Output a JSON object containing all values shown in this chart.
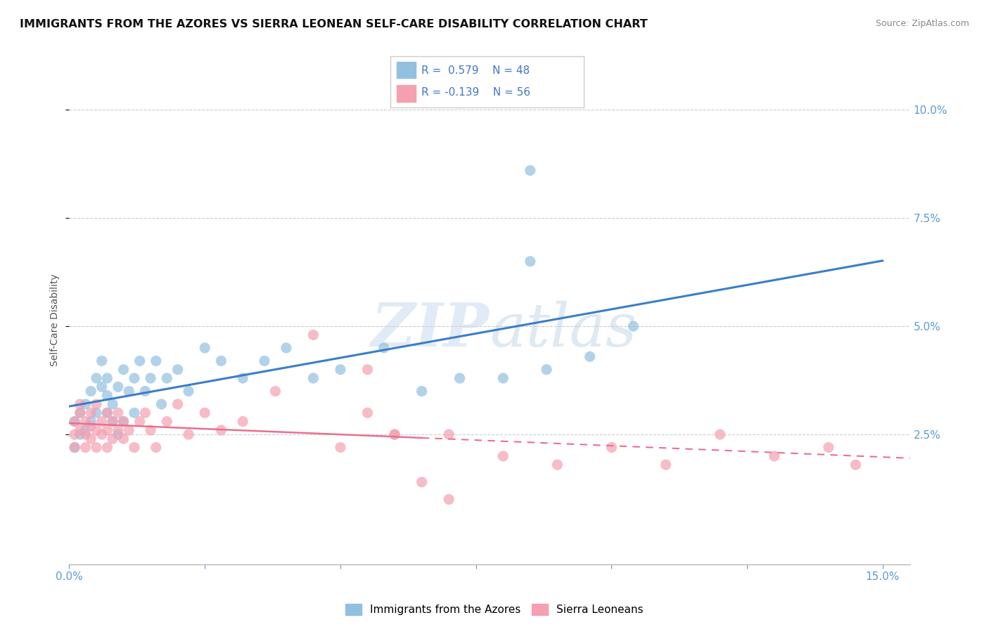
{
  "title": "IMMIGRANTS FROM THE AZORES VS SIERRA LEONEAN SELF-CARE DISABILITY CORRELATION CHART",
  "source": "Source: ZipAtlas.com",
  "xlim": [
    0.0,
    0.155
  ],
  "ylim": [
    -0.005,
    0.108
  ],
  "yticks": [
    0.025,
    0.05,
    0.075,
    0.1
  ],
  "xticks": [
    0.0,
    0.025,
    0.05,
    0.075,
    0.1,
    0.125,
    0.15
  ],
  "legend1_r": "0.579",
  "legend1_n": "48",
  "legend2_r": "-0.139",
  "legend2_n": "56",
  "blue_color": "#92c0e0",
  "pink_color": "#f4a0b0",
  "blue_line_color": "#3a7ec8",
  "pink_line_color": "#e87090",
  "ylabel": "Self-Care Disability",
  "azores_x": [
    0.001,
    0.001,
    0.002,
    0.002,
    0.003,
    0.003,
    0.004,
    0.004,
    0.005,
    0.005,
    0.006,
    0.006,
    0.007,
    0.007,
    0.007,
    0.008,
    0.008,
    0.009,
    0.009,
    0.01,
    0.01,
    0.011,
    0.012,
    0.012,
    0.013,
    0.014,
    0.015,
    0.016,
    0.017,
    0.018,
    0.02,
    0.022,
    0.025,
    0.028,
    0.032,
    0.036,
    0.04,
    0.045,
    0.05,
    0.058,
    0.065,
    0.072,
    0.08,
    0.088,
    0.096,
    0.104,
    0.085,
    0.085
  ],
  "azores_y": [
    0.028,
    0.022,
    0.03,
    0.025,
    0.032,
    0.026,
    0.035,
    0.028,
    0.038,
    0.03,
    0.036,
    0.042,
    0.03,
    0.034,
    0.038,
    0.032,
    0.028,
    0.036,
    0.025,
    0.04,
    0.028,
    0.035,
    0.038,
    0.03,
    0.042,
    0.035,
    0.038,
    0.042,
    0.032,
    0.038,
    0.04,
    0.035,
    0.045,
    0.042,
    0.038,
    0.042,
    0.045,
    0.038,
    0.04,
    0.045,
    0.035,
    0.038,
    0.038,
    0.04,
    0.043,
    0.05,
    0.086,
    0.065
  ],
  "sierra_x": [
    0.001,
    0.001,
    0.001,
    0.002,
    0.002,
    0.002,
    0.003,
    0.003,
    0.003,
    0.004,
    0.004,
    0.004,
    0.005,
    0.005,
    0.005,
    0.006,
    0.006,
    0.007,
    0.007,
    0.007,
    0.008,
    0.008,
    0.009,
    0.009,
    0.01,
    0.01,
    0.011,
    0.012,
    0.013,
    0.014,
    0.015,
    0.016,
    0.018,
    0.02,
    0.022,
    0.025,
    0.028,
    0.032,
    0.038,
    0.045,
    0.055,
    0.06,
    0.055,
    0.07,
    0.08,
    0.09,
    0.1,
    0.11,
    0.12,
    0.13,
    0.14,
    0.145,
    0.05,
    0.06,
    0.065,
    0.07
  ],
  "sierra_y": [
    0.025,
    0.028,
    0.022,
    0.03,
    0.026,
    0.032,
    0.025,
    0.028,
    0.022,
    0.03,
    0.027,
    0.024,
    0.032,
    0.026,
    0.022,
    0.028,
    0.025,
    0.03,
    0.026,
    0.022,
    0.028,
    0.024,
    0.03,
    0.026,
    0.028,
    0.024,
    0.026,
    0.022,
    0.028,
    0.03,
    0.026,
    0.022,
    0.028,
    0.032,
    0.025,
    0.03,
    0.026,
    0.028,
    0.035,
    0.048,
    0.03,
    0.025,
    0.04,
    0.025,
    0.02,
    0.018,
    0.022,
    0.018,
    0.025,
    0.02,
    0.022,
    0.018,
    0.022,
    0.025,
    0.014,
    0.01
  ]
}
